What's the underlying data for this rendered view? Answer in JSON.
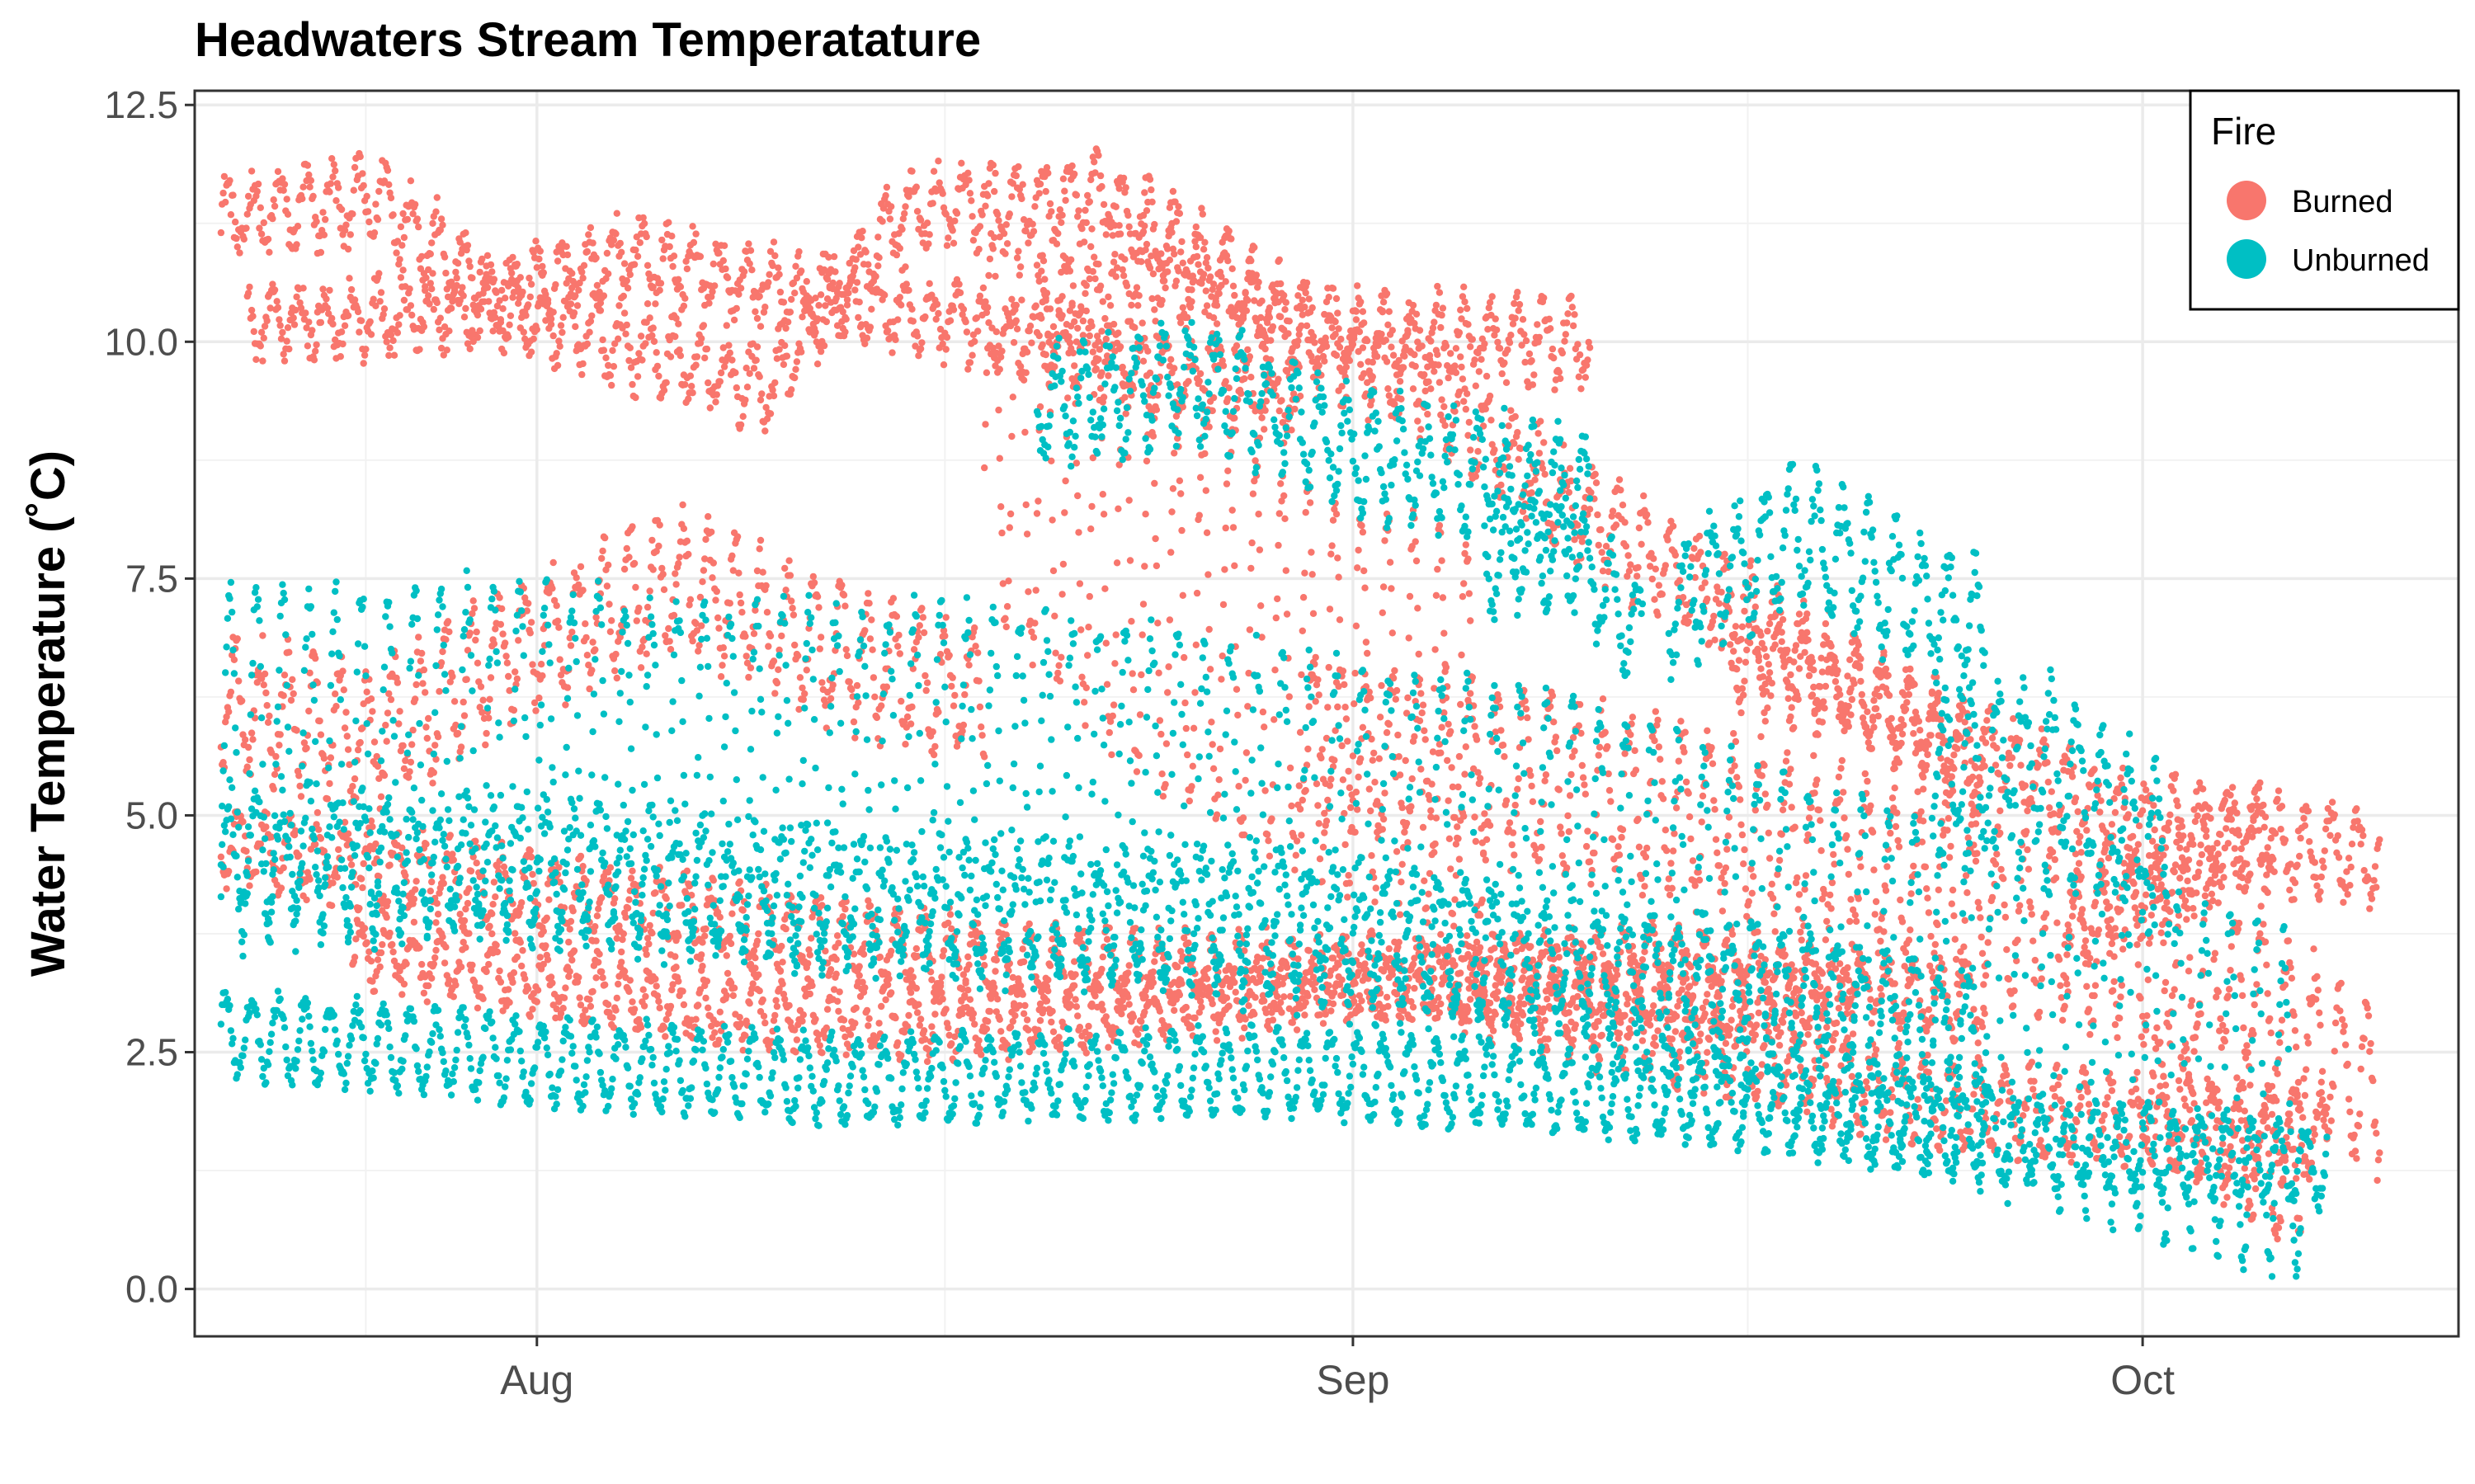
{
  "chart_data": {
    "type": "scatter",
    "title": "Headwaters Stream Temperatature",
    "xlabel": "",
    "ylabel": "Water Temperature (˚C)",
    "x_type": "date",
    "xlim": [
      "2020-07-19",
      "2020-10-13"
    ],
    "ylim": [
      -0.5,
      12.65
    ],
    "y_ticks": [
      0.0,
      2.5,
      5.0,
      7.5,
      10.0,
      12.5
    ],
    "y_tick_labels": [
      "0.0",
      "2.5",
      "5.0",
      "7.5",
      "10.0",
      "12.5"
    ],
    "x_ticks": [
      "2020-08-01",
      "2020-09-01",
      "2020-10-01"
    ],
    "x_tick_labels": [
      "Aug",
      "Sep",
      "Oct"
    ],
    "grid": true,
    "legend": {
      "title": "Fire",
      "position": "top-right"
    },
    "series": [
      {
        "name": "Burned",
        "color": "#F8766D",
        "sites": [
          {
            "start": "2020-07-20",
            "end": "2020-09-10",
            "trend": [
              [
                0,
                11.3
              ],
              [
                0.12,
                11.5
              ],
              [
                0.2,
                10.4
              ],
              [
                0.4,
                9.5
              ],
              [
                0.5,
                11.4
              ],
              [
                0.65,
                11.5
              ],
              [
                0.8,
                10.1
              ],
              [
                1,
                10.0
              ]
            ],
            "amp": 0.35,
            "jitter": 0.2
          },
          {
            "start": "2020-07-21",
            "end": "2020-08-30",
            "trend": [
              [
                0,
                10.2
              ],
              [
                0.2,
                10.3
              ],
              [
                0.35,
                10.9
              ],
              [
                0.55,
                10.5
              ],
              [
                0.75,
                10.0
              ],
              [
                1,
                9.3
              ]
            ],
            "amp": 0.3,
            "jitter": 0.2
          },
          {
            "start": "2020-08-20",
            "end": "2020-09-25",
            "trend": [
              [
                0,
                10.4
              ],
              [
                0.12,
                10.7
              ],
              [
                0.4,
                9.6
              ],
              [
                0.6,
                8.0
              ],
              [
                0.8,
                6.8
              ],
              [
                1,
                5.4
              ]
            ],
            "amp": 0.4,
            "jitter": 0.25
          },
          {
            "start": "2020-08-18",
            "end": "2020-09-06",
            "trend": [
              [
                0,
                9.3
              ],
              [
                0.3,
                7.5
              ],
              [
                0.6,
                6.5
              ],
              [
                1,
                5.8
              ]
            ],
            "amp": 2.0,
            "jitter": 0.2
          },
          {
            "start": "2020-07-20",
            "end": "2020-08-18",
            "trend": [
              [
                0,
                6.2
              ],
              [
                0.2,
                5.8
              ],
              [
                0.4,
                6.8
              ],
              [
                0.6,
                7.5
              ],
              [
                0.8,
                6.7
              ],
              [
                1,
                6.3
              ]
            ],
            "amp": 0.6,
            "jitter": 0.25
          },
          {
            "start": "2020-08-30",
            "end": "2020-10-10",
            "trend": [
              [
                0,
                5.8
              ],
              [
                0.3,
                5.2
              ],
              [
                0.5,
                4.6
              ],
              [
                0.7,
                3.8
              ],
              [
                0.85,
                3.4
              ],
              [
                1,
                2.0
              ]
            ],
            "amp": 0.8,
            "jitter": 0.25
          },
          {
            "start": "2020-07-20",
            "end": "2020-09-20",
            "trend": [
              [
                0,
                4.7
              ],
              [
                0.15,
                4.3
              ],
              [
                0.3,
                3.9
              ],
              [
                0.5,
                3.4
              ],
              [
                0.7,
                3.3
              ],
              [
                1,
                3.0
              ]
            ],
            "amp": 0.35,
            "jitter": 0.15
          },
          {
            "start": "2020-07-25",
            "end": "2020-09-25",
            "trend": [
              [
                0,
                3.6
              ],
              [
                0.2,
                3.0
              ],
              [
                0.4,
                2.8
              ],
              [
                0.6,
                3.2
              ],
              [
                0.8,
                3.5
              ],
              [
                1,
                3.0
              ]
            ],
            "amp": 0.3,
            "jitter": 0.15
          },
          {
            "start": "2020-09-15",
            "end": "2020-10-10",
            "trend": [
              [
                0,
                6.7
              ],
              [
                0.3,
                6.0
              ],
              [
                0.6,
                5.0
              ],
              [
                1,
                4.5
              ]
            ],
            "amp": 0.4,
            "jitter": 0.2
          },
          {
            "start": "2020-09-05",
            "end": "2020-10-08",
            "trend": [
              [
                0,
                3.2
              ],
              [
                0.3,
                2.5
              ],
              [
                0.6,
                1.9
              ],
              [
                1,
                1.6
              ]
            ],
            "amp": 0.4,
            "jitter": 0.15
          },
          {
            "start": "2020-09-28",
            "end": "2020-10-06",
            "trend": [
              [
                0,
                3.8
              ],
              [
                0.5,
                4.4
              ],
              [
                1,
                4.9
              ]
            ],
            "amp": 0.4,
            "jitter": 0.2
          },
          {
            "start": "2020-10-01",
            "end": "2020-10-07",
            "trend": [
              [
                0,
                2.2
              ],
              [
                1,
                1.0
              ]
            ],
            "amp": 0.6,
            "jitter": 0.15
          }
        ]
      },
      {
        "name": "Unburned",
        "color": "#00BFC4",
        "sites": [
          {
            "start": "2020-07-20",
            "end": "2020-10-08",
            "trend": [
              [
                0,
                2.7
              ],
              [
                0.15,
                2.4
              ],
              [
                0.3,
                2.2
              ],
              [
                0.5,
                2.3
              ],
              [
                0.7,
                2.0
              ],
              [
                0.85,
                1.6
              ],
              [
                1,
                1.3
              ]
            ],
            "amp": 0.4,
            "jitter": 0.12
          },
          {
            "start": "2020-07-20",
            "end": "2020-10-07",
            "trend": [
              [
                0,
                5.5
              ],
              [
                0.12,
                5.6
              ],
              [
                0.22,
                5.4
              ],
              [
                0.38,
                5.3
              ],
              [
                0.5,
                4.9
              ],
              [
                0.65,
                4.4
              ],
              [
                0.8,
                3.2
              ],
              [
                0.9,
                2.6
              ],
              [
                1,
                1.8
              ]
            ],
            "amp": 1.8,
            "jitter": 0.2
          },
          {
            "start": "2020-07-20",
            "end": "2020-09-25",
            "trend": [
              [
                0,
                4.6
              ],
              [
                0.2,
                4.4
              ],
              [
                0.4,
                4.0
              ],
              [
                0.6,
                3.9
              ],
              [
                0.8,
                3.4
              ],
              [
                1,
                2.6
              ]
            ],
            "amp": 0.6,
            "jitter": 0.25
          },
          {
            "start": "2020-08-20",
            "end": "2020-09-10",
            "trend": [
              [
                0,
                9.3
              ],
              [
                0.3,
                9.6
              ],
              [
                0.6,
                8.8
              ],
              [
                1,
                8.4
              ]
            ],
            "amp": 0.5,
            "jitter": 0.25
          },
          {
            "start": "2020-09-13",
            "end": "2020-09-25",
            "trend": [
              [
                0,
                7.2
              ],
              [
                0.4,
                8.0
              ],
              [
                1,
                6.9
              ]
            ],
            "amp": 0.6,
            "jitter": 0.25
          },
          {
            "start": "2020-09-06",
            "end": "2020-09-12",
            "trend": [
              [
                0,
                7.7
              ],
              [
                0.5,
                7.8
              ],
              [
                1,
                6.9
              ]
            ],
            "amp": 0.5,
            "jitter": 0.2
          },
          {
            "start": "2020-09-23",
            "end": "2020-10-02",
            "trend": [
              [
                0,
                5.5
              ],
              [
                0.5,
                5.6
              ],
              [
                1,
                4.6
              ]
            ],
            "amp": 0.7,
            "jitter": 0.25
          }
        ]
      }
    ]
  }
}
